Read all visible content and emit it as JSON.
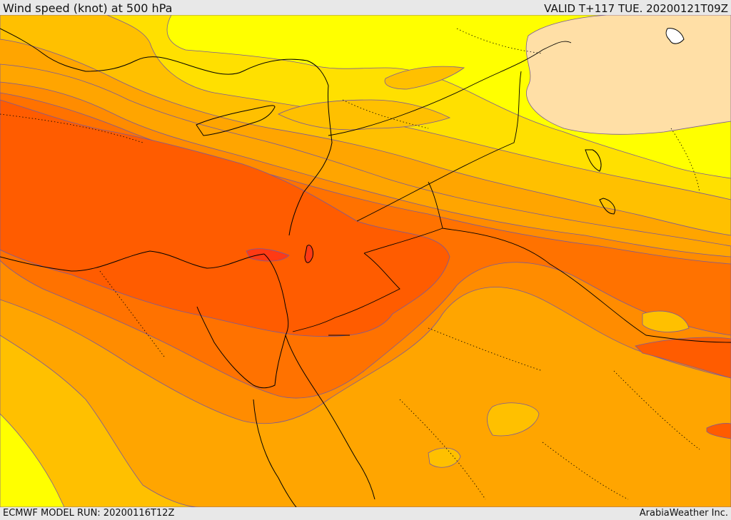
{
  "header": {
    "title": "Wind speed (knot) at 500 hPa",
    "valid": "VALID T+117 TUE. 20200121T09Z"
  },
  "footer": {
    "model_run": "ECMWF MODEL RUN: 20200116T12Z",
    "credit": "ArabiaWeather Inc."
  },
  "colors": {
    "cream": "#ffdfa6",
    "yellow": "#ffff00",
    "light_gold": "#ffe000",
    "gold": "#ffc000",
    "orange_light": "#ffa500",
    "orange": "#ff8c00",
    "orange_dark": "#ff7200",
    "red_orange": "#ff5c00",
    "red": "#ff3a14",
    "contour": "#7a5a9a",
    "coast": "#000000"
  }
}
